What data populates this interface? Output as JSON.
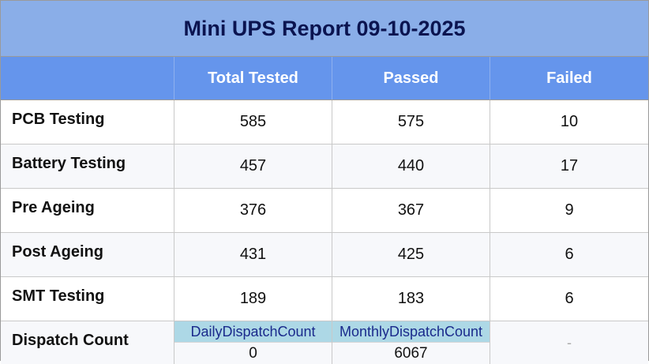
{
  "title": "Mini UPS Report 09-10-2025",
  "columns": [
    "",
    "Total Tested",
    "Passed",
    "Failed"
  ],
  "rows": [
    {
      "label": "PCB Testing",
      "total": "585",
      "passed": "575",
      "failed": "10"
    },
    {
      "label": "Battery Testing",
      "total": "457",
      "passed": "440",
      "failed": "17"
    },
    {
      "label": "Pre Ageing",
      "total": "376",
      "passed": "367",
      "failed": "9"
    },
    {
      "label": "Post Ageing",
      "total": "431",
      "passed": "425",
      "failed": "6"
    },
    {
      "label": "SMT Testing",
      "total": "189",
      "passed": "183",
      "failed": "6"
    }
  ],
  "dispatch": {
    "label": "Dispatch Count",
    "daily_label": "DailyDispatchCount",
    "daily_value": "0",
    "monthly_label": "MonthlyDispatchCount",
    "monthly_value": "6067",
    "failed_placeholder": "-"
  },
  "colors": {
    "title_bg": "#8aaee8",
    "header_bg": "#6595ec",
    "dispatch_label_bg": "#add8e6"
  }
}
